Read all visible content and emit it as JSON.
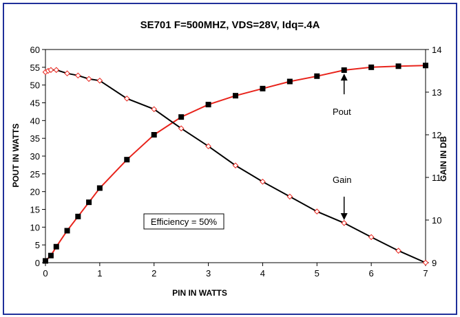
{
  "chart_data": {
    "type": "line",
    "title": "SE701 F=500MHZ, VDS=28V, Idq=.4A",
    "xlabel": "PIN IN WATTS",
    "ylabel_left": "POUT IN WATTS",
    "ylabel_right": "GAIN IN DB",
    "xlim": [
      0,
      7
    ],
    "ylim_left": [
      0,
      60
    ],
    "ylim_right": [
      9,
      14
    ],
    "x_ticks": [
      0,
      1,
      2,
      3,
      4,
      5,
      6,
      7
    ],
    "y_ticks_left": [
      0,
      5,
      10,
      15,
      20,
      25,
      30,
      35,
      40,
      45,
      50,
      55,
      60
    ],
    "y_ticks_right": [
      9,
      10,
      11,
      12,
      13,
      14
    ],
    "grid": false,
    "series": [
      {
        "name": "Pout",
        "axis": "left",
        "color": "#e8231b",
        "marker": "filled-square",
        "x": [
          0,
          0.1,
          0.2,
          0.4,
          0.6,
          0.8,
          1.0,
          1.5,
          2.0,
          2.5,
          3.0,
          3.5,
          4.0,
          4.5,
          5.0,
          5.5,
          6.0,
          6.5,
          7.0
        ],
        "y": [
          0.5,
          2,
          4.5,
          9,
          13,
          17,
          21,
          29,
          36,
          41,
          44.5,
          47,
          49,
          51,
          52.5,
          54.2,
          55,
          55.3,
          55.5
        ]
      },
      {
        "name": "Gain",
        "axis": "right",
        "color": "#000000",
        "marker": "open-diamond",
        "x": [
          0,
          0.05,
          0.1,
          0.2,
          0.4,
          0.6,
          0.8,
          1.0,
          1.5,
          2.0,
          2.5,
          3.0,
          3.5,
          4.0,
          4.5,
          5.0,
          5.5,
          6.0,
          6.5,
          7.0
        ],
        "y": [
          13.47,
          13.5,
          13.52,
          13.52,
          13.44,
          13.39,
          13.31,
          13.27,
          12.85,
          12.6,
          12.15,
          11.73,
          11.28,
          10.9,
          10.55,
          10.2,
          9.93,
          9.6,
          9.28,
          9.0
        ]
      }
    ],
    "annotations": {
      "pout_label": "Pout",
      "gain_label": "Gain",
      "efficiency_label": "Efficiency = 50%"
    }
  }
}
